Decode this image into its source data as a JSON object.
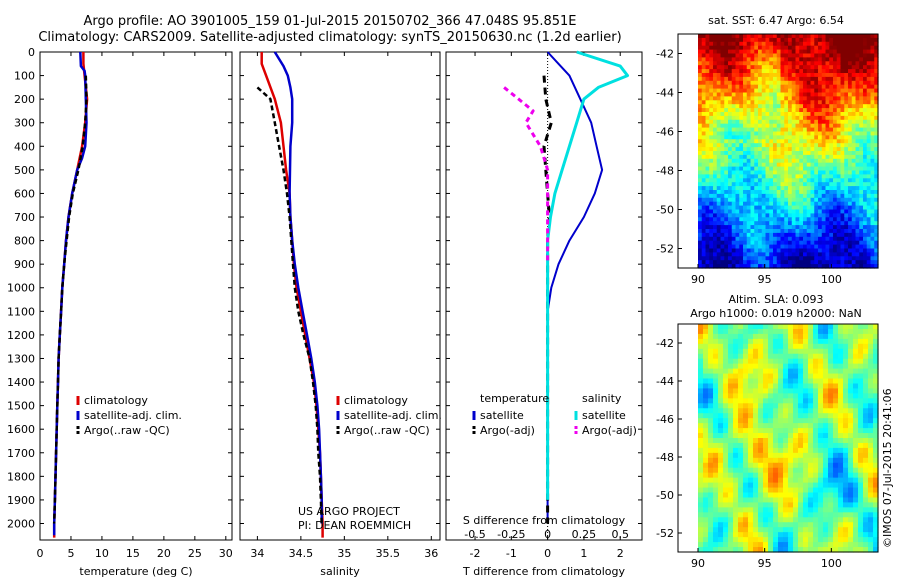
{
  "header": {
    "title_line1": "Argo profile: AO 3901005_159 01-Jul-2015 20150702_366 47.048S 95.851E",
    "title_line2": "Climatology: CARS2009. Satellite-adjusted climatology: synTS_20150630.nc (1.2d earlier)"
  },
  "colors": {
    "climatology": "#dd0000",
    "satellite_adj": "#0000cc",
    "argo": "#000000",
    "temp_diff_sat": "#0000cc",
    "sal_diff_sat": "#00e0e0",
    "sal_diff_argo": "#ee00ee"
  },
  "chart_data": [
    {
      "id": "temperature",
      "type": "line",
      "xlabel": "temperature (deg C)",
      "ylabel": "",
      "xlim": [
        0,
        31
      ],
      "ylim": [
        2070,
        0
      ],
      "xticks": [
        0,
        5,
        10,
        15,
        20,
        25,
        30
      ],
      "yticks": [
        0,
        100,
        200,
        300,
        400,
        500,
        600,
        700,
        800,
        900,
        1000,
        1100,
        1200,
        1300,
        1400,
        1500,
        1600,
        1700,
        1800,
        1900,
        2000
      ],
      "legend": [
        "climatology",
        "satellite-adj. clim.",
        "Argo(..raw -QC)"
      ],
      "series": [
        {
          "name": "climatology",
          "x": [
            7.0,
            7.0,
            7.2,
            7.6,
            7.3,
            6.8,
            6.0,
            5.2,
            4.6,
            4.2,
            3.9,
            3.6,
            3.4,
            3.2,
            3.0,
            2.9,
            2.8,
            2.7,
            2.6,
            2.5,
            2.4,
            2.3,
            2.3
          ],
          "y": [
            0,
            50,
            100,
            200,
            300,
            400,
            500,
            600,
            700,
            800,
            900,
            1000,
            1100,
            1200,
            1300,
            1400,
            1500,
            1600,
            1700,
            1800,
            1900,
            2000,
            2060
          ]
        },
        {
          "name": "satellite-adj. clim.",
          "x": [
            6.5,
            6.6,
            7.2,
            7.3,
            7.4,
            7.5,
            7.3,
            6.8,
            6.0,
            5.2,
            4.6,
            4.2,
            3.9,
            3.6,
            3.4,
            3.2,
            3.0,
            2.9,
            2.8,
            2.7,
            2.6,
            2.5,
            2.4,
            2.3,
            2.3
          ],
          "y": [
            0,
            60,
            80,
            100,
            200,
            300,
            400,
            450,
            500,
            600,
            700,
            800,
            900,
            1000,
            1100,
            1200,
            1300,
            1400,
            1500,
            1600,
            1700,
            1800,
            1900,
            2000,
            2050
          ]
        },
        {
          "name": "Argo(..raw -QC)",
          "x": [
            7.4,
            7.5,
            7.3,
            6.9,
            6.2,
            5.3,
            4.7,
            4.3,
            3.9,
            3.6,
            3.4,
            3.2,
            3.0,
            2.9,
            2.8,
            2.7,
            2.6,
            2.5,
            2.4,
            2.3
          ],
          "y": [
            100,
            200,
            300,
            400,
            500,
            600,
            700,
            800,
            900,
            1000,
            1100,
            1200,
            1300,
            1400,
            1500,
            1600,
            1700,
            1800,
            1900,
            2000
          ]
        }
      ]
    },
    {
      "id": "salinity",
      "type": "line",
      "xlabel": "salinity",
      "ylabel": "",
      "xlim": [
        33.8,
        36.1
      ],
      "ylim": [
        2070,
        0
      ],
      "xticks": [
        34,
        34.5,
        35,
        35.5,
        36
      ],
      "xticklabels": [
        "34",
        "34.5",
        "35",
        "35.5",
        "36"
      ],
      "legend": [
        "climatology",
        "satellite-adj. clim.",
        "Argo(..raw -QC)"
      ],
      "annotations": [
        "US ARGO PROJECT",
        "PI: DEAN ROEMMICH"
      ],
      "series": [
        {
          "name": "climatology",
          "x": [
            34.05,
            34.05,
            34.1,
            34.2,
            34.27,
            34.3,
            34.33,
            34.37,
            34.38,
            34.4,
            34.42,
            34.45,
            34.5,
            34.55,
            34.6,
            34.65,
            34.68,
            34.7,
            34.72,
            34.73,
            34.74,
            34.75,
            34.75
          ],
          "y": [
            0,
            50,
            100,
            200,
            300,
            400,
            500,
            600,
            700,
            800,
            900,
            1000,
            1100,
            1200,
            1300,
            1400,
            1500,
            1600,
            1700,
            1800,
            1900,
            2000,
            2060
          ]
        },
        {
          "name": "satellite-adj. clim.",
          "x": [
            34.2,
            34.3,
            34.35,
            34.38,
            34.4,
            34.4,
            34.38,
            34.37,
            34.38,
            34.4,
            34.43,
            34.47,
            34.52,
            34.57,
            34.62,
            34.66,
            34.69,
            34.71,
            34.72,
            34.73,
            34.74,
            34.74
          ],
          "y": [
            0,
            60,
            100,
            150,
            200,
            300,
            400,
            600,
            700,
            800,
            900,
            1000,
            1100,
            1200,
            1300,
            1400,
            1500,
            1600,
            1700,
            1800,
            1900,
            2000
          ]
        },
        {
          "name": "Argo(..raw -QC)",
          "x": [
            34.0,
            34.15,
            34.2,
            34.25,
            34.3,
            34.34,
            34.37,
            34.39,
            34.41,
            34.43,
            34.47,
            34.53,
            34.6,
            34.64,
            34.67,
            34.69,
            34.7,
            34.72,
            34.73,
            34.74
          ],
          "y": [
            150,
            200,
            300,
            400,
            500,
            600,
            700,
            800,
            900,
            1000,
            1100,
            1200,
            1300,
            1400,
            1500,
            1600,
            1700,
            1800,
            1900,
            2000
          ]
        }
      ]
    },
    {
      "id": "differences",
      "type": "line",
      "xlabel": "T difference from climatology",
      "x2label": "S difference from climatology",
      "ylabel": "",
      "xlim": [
        -2.8,
        2.6
      ],
      "ylim": [
        2070,
        0
      ],
      "xticks": [
        -2,
        -1,
        0,
        1,
        2
      ],
      "x2lim": [
        -0.7,
        0.65
      ],
      "x2ticks": [
        -0.5,
        -0.25,
        0,
        0.25,
        0.5
      ],
      "x2ticklabels": [
        "-0.5",
        "-0.25",
        "0",
        "0.25",
        "0.5"
      ],
      "legend_temperature_title": "temperature",
      "legend_salinity_title": "salinity",
      "legend_temperature": [
        "satellite",
        "Argo(-adj)"
      ],
      "legend_salinity": [
        "satellite",
        "Argo(-adj)"
      ],
      "series": [
        {
          "name": "temperature satellite",
          "x": [
            0.0,
            0.3,
            0.6,
            0.9,
            1.2,
            1.35,
            1.5,
            1.3,
            1.0,
            0.6,
            0.3,
            0.1,
            0.0,
            0.0,
            0.0,
            0.0,
            0.0,
            0.0,
            0.0,
            0.0,
            0.0,
            0.0
          ],
          "y": [
            0,
            50,
            100,
            200,
            300,
            400,
            500,
            600,
            700,
            800,
            900,
            1000,
            1100,
            1200,
            1300,
            1400,
            1500,
            1600,
            1700,
            1800,
            1900,
            2000
          ]
        },
        {
          "name": "temperature Argo(-adj)",
          "x": [
            -0.1,
            -0.05,
            0.1,
            -0.1,
            -0.05,
            0.0,
            0.05,
            0.0,
            0.0,
            0.0,
            0.0,
            0.0,
            0.0,
            0.0,
            0.0,
            0.0,
            0.0,
            0.0,
            0.0,
            0.0
          ],
          "y": [
            100,
            200,
            300,
            400,
            500,
            600,
            700,
            800,
            900,
            1000,
            1100,
            1200,
            1300,
            1400,
            1500,
            1600,
            1700,
            1800,
            1900,
            2000
          ]
        },
        {
          "name": "salinity satellite",
          "x": [
            0.2,
            0.5,
            0.55,
            0.35,
            0.25,
            0.2,
            0.15,
            0.1,
            0.05,
            0.02,
            0.0,
            0.0,
            0.0,
            0.0,
            0.0,
            0.0,
            0.0,
            0.0,
            0.0,
            0.0,
            0.0,
            0.0
          ],
          "y": [
            0,
            60,
            100,
            150,
            200,
            300,
            400,
            500,
            600,
            700,
            800,
            900,
            1000,
            1100,
            1200,
            1300,
            1400,
            1500,
            1600,
            1700,
            1800,
            1900
          ]
        },
        {
          "name": "salinity Argo(-adj)",
          "x": [
            -0.3,
            -0.2,
            -0.1,
            -0.15,
            -0.05,
            0.0,
            0.0,
            0.0,
            0.0,
            0.0
          ],
          "y": [
            150,
            200,
            250,
            300,
            400,
            500,
            600,
            700,
            800,
            900
          ]
        }
      ]
    },
    {
      "id": "sst_map",
      "type": "heatmap",
      "title": "sat. SST: 6.47 Argo: 6.54",
      "xlim": [
        88.5,
        103.5
      ],
      "ylim": [
        -53,
        -41
      ],
      "xticks": [
        90,
        95,
        100
      ],
      "yticks": [
        -42,
        -44,
        -46,
        -48,
        -50,
        -52
      ]
    },
    {
      "id": "sla_map",
      "type": "heatmap",
      "title": "Altim. SLA: 0.093",
      "subtitle": "Argo h1000: 0.019 h2000: NaN",
      "xlim": [
        88.5,
        103.5
      ],
      "ylim": [
        -53,
        -41
      ],
      "xticks": [
        90,
        95,
        100
      ],
      "yticks": [
        -42,
        -44,
        -46,
        -48,
        -50,
        -52
      ]
    }
  ],
  "footer": {
    "credit": "©IMOS 07-Jul-2015 20:41:06"
  }
}
